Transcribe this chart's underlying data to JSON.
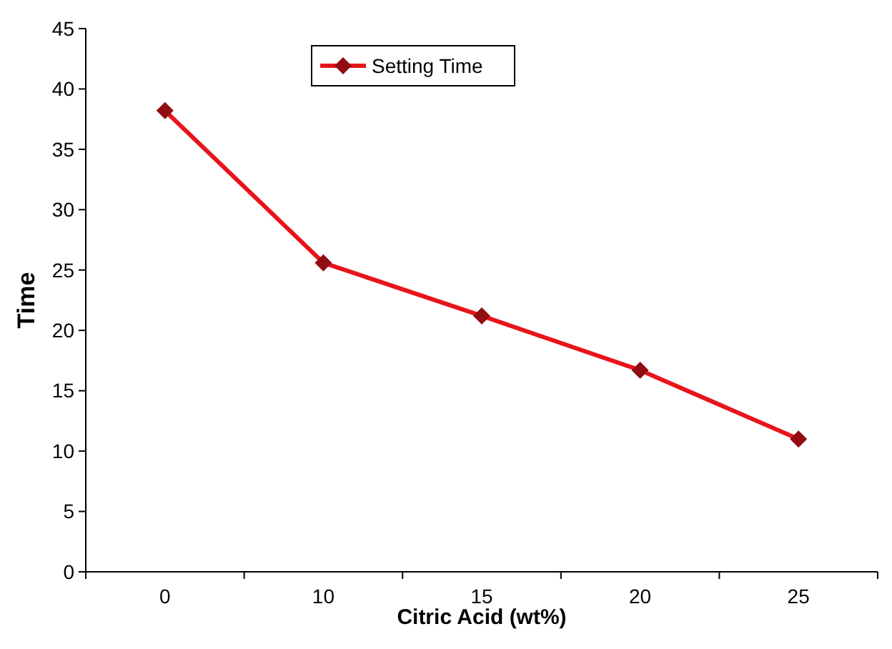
{
  "chart_data": {
    "type": "line",
    "xlabel": "Citric Acid (wt%)",
    "ylabel": "Time",
    "categories": [
      "0",
      "10",
      "15",
      "20",
      "25"
    ],
    "series": [
      {
        "name": "Setting Time",
        "color": "#e8141b",
        "values": [
          38.2,
          25.6,
          21.2,
          16.7,
          11.0
        ]
      }
    ],
    "ylim": [
      0,
      45
    ],
    "yticks": [
      0,
      5,
      10,
      15,
      20,
      25,
      30,
      35,
      40,
      45
    ],
    "grid": false,
    "legend": "top",
    "marker": "diamond",
    "line_style": "solid"
  }
}
